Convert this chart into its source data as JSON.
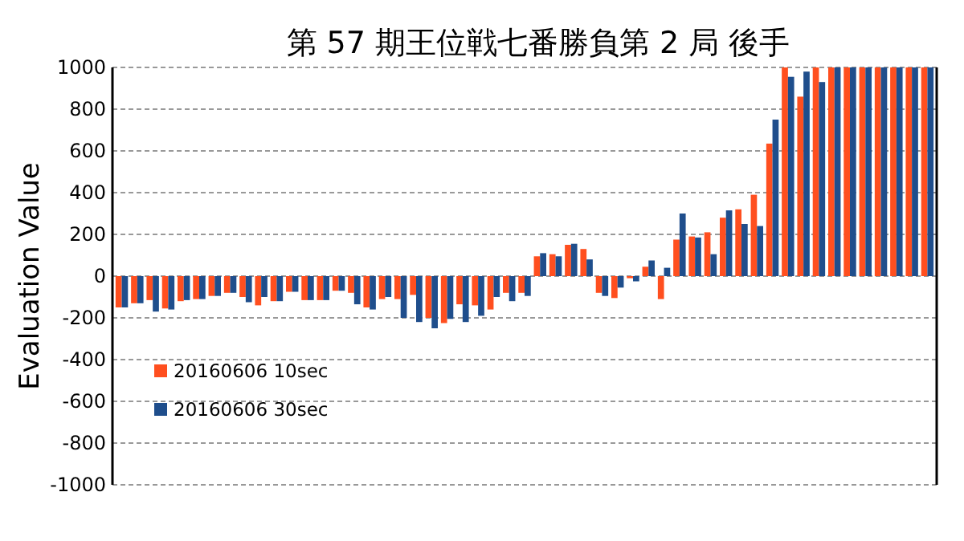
{
  "chart_data": {
    "type": "bar",
    "title": "第 57 期王位戦七番勝負第 2 局 後手",
    "ylabel": "Evaluation Value",
    "categories": [
      null,
      null,
      null,
      null,
      null,
      null,
      null,
      null,
      null,
      null,
      null,
      null,
      null,
      null,
      null,
      null,
      null,
      null,
      null,
      null,
      null,
      null,
      null,
      null,
      null,
      null,
      null,
      null,
      null,
      null,
      null,
      null,
      null,
      null,
      null,
      null,
      null,
      null,
      null,
      null,
      null,
      null,
      null,
      null,
      null,
      null,
      null,
      null,
      null,
      null,
      null,
      null,
      null
    ],
    "series": [
      {
        "name": "20160606 10sec",
        "color": "#ff4f1f",
        "values": [
          -150,
          -130,
          -115,
          -155,
          -120,
          -110,
          -95,
          -80,
          -100,
          -140,
          -120,
          -75,
          -115,
          -115,
          -70,
          -80,
          -150,
          -110,
          -110,
          -90,
          -200,
          -225,
          -135,
          -140,
          -160,
          -80,
          -80,
          95,
          105,
          150,
          130,
          -80,
          -105,
          -10,
          45,
          -110,
          175,
          190,
          210,
          280,
          320,
          390,
          635,
          1000,
          860,
          1000,
          1000,
          1000,
          1000,
          1000,
          1000,
          1000,
          1000
        ]
      },
      {
        "name": "20160606 30sec",
        "color": "#1f4e8c",
        "values": [
          -150,
          -130,
          -170,
          -160,
          -115,
          -110,
          -95,
          -80,
          -125,
          -100,
          -120,
          -75,
          -115,
          -115,
          -70,
          -135,
          -160,
          -100,
          -200,
          -220,
          -250,
          -205,
          -220,
          -190,
          -100,
          -120,
          -95,
          110,
          95,
          155,
          80,
          -95,
          -55,
          -25,
          75,
          40,
          300,
          185,
          105,
          315,
          250,
          240,
          750,
          955,
          980,
          930,
          1000,
          1000,
          1000,
          1000,
          1000,
          1000,
          1000
        ]
      }
    ],
    "ylim": [
      -1000,
      1000
    ],
    "yticks": [
      -1000,
      -800,
      -600,
      -400,
      -200,
      0,
      200,
      400,
      600,
      800,
      1000
    ],
    "grid": "y",
    "legend": "left"
  }
}
